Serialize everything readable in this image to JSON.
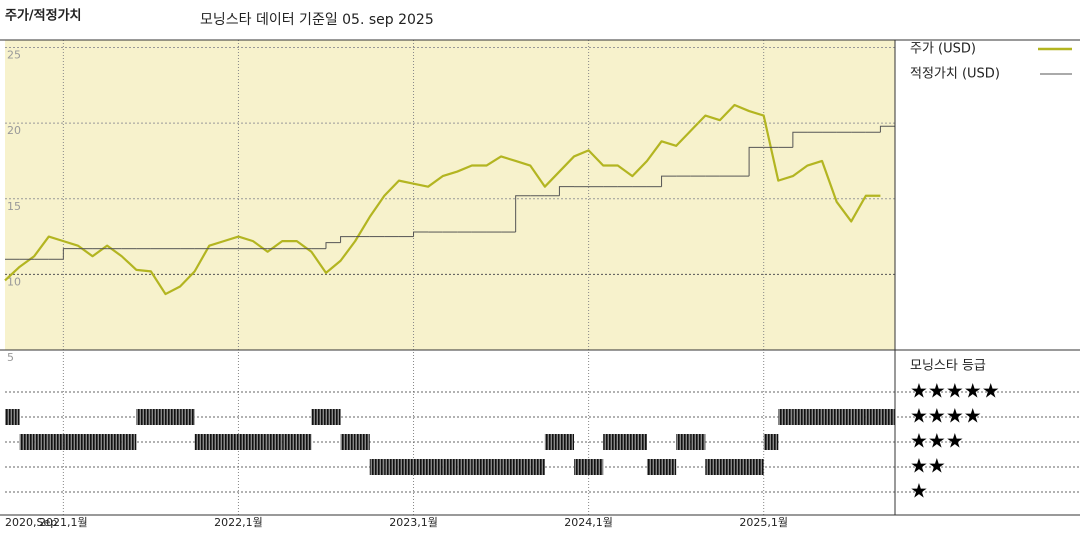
{
  "chart_data": {
    "type": "line",
    "title": "주가/적정가치",
    "subtitle": "모닝스타 데이터 기준일 05. sep 2025",
    "x": [
      "2020-09",
      "2020-10",
      "2020-11",
      "2020-12",
      "2021-01",
      "2021-02",
      "2021-03",
      "2021-04",
      "2021-05",
      "2021-06",
      "2021-07",
      "2021-08",
      "2021-09",
      "2021-10",
      "2021-11",
      "2021-12",
      "2022-01",
      "2022-02",
      "2022-03",
      "2022-04",
      "2022-05",
      "2022-06",
      "2022-07",
      "2022-08",
      "2022-09",
      "2022-10",
      "2022-11",
      "2022-12",
      "2023-01",
      "2023-02",
      "2023-03",
      "2023-04",
      "2023-05",
      "2023-06",
      "2023-07",
      "2023-08",
      "2023-09",
      "2023-10",
      "2023-11",
      "2023-12",
      "2024-01",
      "2024-02",
      "2024-03",
      "2024-04",
      "2024-05",
      "2024-06",
      "2024-07",
      "2024-08",
      "2024-09",
      "2024-10",
      "2024-11",
      "2024-12",
      "2025-01",
      "2025-02",
      "2025-03",
      "2025-04",
      "2025-05",
      "2025-06",
      "2025-07",
      "2025-08",
      "2025-09"
    ],
    "series": [
      {
        "name": "주가 (USD)",
        "color": "#b3b521",
        "style": "line",
        "values": [
          9.6,
          10.5,
          11.2,
          12.5,
          12.2,
          11.9,
          11.2,
          11.9,
          11.2,
          10.3,
          10.2,
          8.7,
          9.2,
          10.2,
          11.9,
          12.2,
          12.5,
          12.2,
          11.5,
          12.2,
          12.2,
          11.5,
          10.1,
          10.9,
          12.2,
          13.8,
          15.2,
          16.2,
          16.0,
          15.8,
          16.5,
          16.8,
          17.2,
          17.2,
          17.8,
          17.5,
          17.2,
          15.8,
          16.8,
          17.8,
          18.2,
          17.2,
          17.2,
          16.5,
          17.5,
          18.8,
          18.5,
          19.5,
          20.5,
          20.2,
          21.2,
          20.8,
          20.5,
          16.2,
          16.5,
          17.2,
          17.5,
          14.8,
          13.5,
          15.2,
          15.2
        ]
      },
      {
        "name": "적정가치 (USD)",
        "color": "#555555",
        "style": "step",
        "values": [
          11.0,
          11.0,
          11.0,
          11.0,
          11.7,
          11.7,
          11.7,
          11.7,
          11.7,
          11.7,
          11.7,
          11.7,
          11.7,
          11.7,
          11.7,
          11.7,
          11.7,
          11.7,
          11.7,
          11.7,
          11.7,
          11.7,
          12.1,
          12.5,
          12.5,
          12.5,
          12.5,
          12.5,
          12.8,
          12.8,
          12.8,
          12.8,
          12.8,
          12.8,
          12.8,
          15.2,
          15.2,
          15.2,
          15.8,
          15.8,
          15.8,
          15.8,
          15.8,
          15.8,
          15.8,
          16.5,
          16.5,
          16.5,
          16.5,
          16.5,
          16.5,
          18.4,
          18.4,
          18.4,
          19.4,
          19.4,
          19.4,
          19.4,
          19.4,
          19.4,
          19.8
        ]
      }
    ],
    "xlim": [
      "2020-09",
      "2025-10"
    ],
    "xticks": [
      {
        "value": "2020-09",
        "label": "2020,Sep"
      },
      {
        "value": "2021-01",
        "label": "2021,1월"
      },
      {
        "value": "2022-01",
        "label": "2022,1월"
      },
      {
        "value": "2023-01",
        "label": "2023,1월"
      },
      {
        "value": "2024-01",
        "label": "2024,1월"
      },
      {
        "value": "2025-01",
        "label": "2025,1월"
      }
    ],
    "ylim": [
      5,
      25.5
    ],
    "yticks": [
      5,
      10,
      15,
      20,
      25
    ],
    "background": "#f7f2cc",
    "rating_title": "모닝스타 등급",
    "rating_labels": [
      "★★★★★",
      "★★★★",
      "★★★",
      "★★",
      "★"
    ],
    "ratings": [
      4,
      3,
      3,
      3,
      3,
      3,
      3,
      3,
      3,
      4,
      4,
      4,
      4,
      3,
      3,
      3,
      3,
      3,
      3,
      3,
      3,
      4,
      4,
      3,
      3,
      2,
      2,
      2,
      2,
      2,
      2,
      2,
      2,
      2,
      2,
      2,
      2,
      3,
      3,
      2,
      2,
      3,
      3,
      3,
      2,
      2,
      3,
      3,
      2,
      2,
      2,
      2,
      3,
      4,
      4,
      4,
      4,
      4,
      4,
      4,
      4
    ]
  }
}
